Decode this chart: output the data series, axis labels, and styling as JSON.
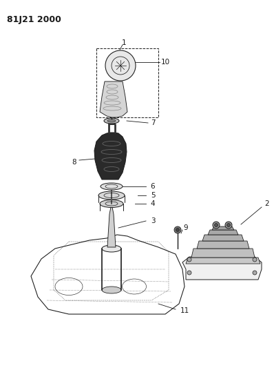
{
  "title": "81J21 2000",
  "bg_color": "#ffffff",
  "line_color": "#1a1a1a",
  "title_fontsize": 9,
  "label_fontsize": 7.5,
  "figsize": [
    3.98,
    5.33
  ],
  "dpi": 100
}
